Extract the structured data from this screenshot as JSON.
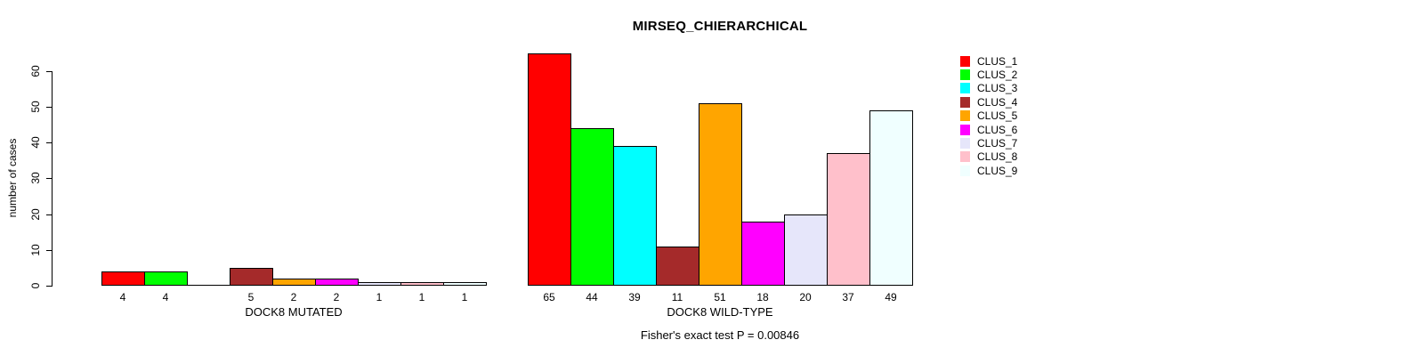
{
  "chart_data": {
    "type": "bar",
    "title": "MIRSEQ_CHIERARCHICAL",
    "ylabel": "number of cases",
    "xlabel": "",
    "note": "Fisher's exact test P = 0.00846",
    "ylim": [
      0,
      65
    ],
    "yticks": [
      0,
      10,
      20,
      30,
      40,
      50,
      60
    ],
    "grid": false,
    "legend_position": "top-right",
    "legend": [
      {
        "label": "CLUS_1",
        "color": "#FF0000"
      },
      {
        "label": "CLUS_2",
        "color": "#00FF00"
      },
      {
        "label": "CLUS_3",
        "color": "#00FFFF"
      },
      {
        "label": "CLUS_4",
        "color": "#A52A2A"
      },
      {
        "label": "CLUS_5",
        "color": "#FFA500"
      },
      {
        "label": "CLUS_6",
        "color": "#FF00FF"
      },
      {
        "label": "CLUS_7",
        "color": "#E6E6FA"
      },
      {
        "label": "CLUS_8",
        "color": "#FFC0CB"
      },
      {
        "label": "CLUS_9",
        "color": "#F0FFFF"
      }
    ],
    "series_colors": [
      "#FF0000",
      "#00FF00",
      "#00FFFF",
      "#A52A2A",
      "#FFA500",
      "#FF00FF",
      "#E6E6FA",
      "#FFC0CB",
      "#F0FFFF"
    ],
    "groups": [
      {
        "label": "DOCK8 MUTATED",
        "values": [
          4,
          4,
          0,
          5,
          2,
          2,
          1,
          1,
          1
        ]
      },
      {
        "label": "DOCK8 WILD-TYPE",
        "values": [
          65,
          44,
          39,
          11,
          51,
          18,
          20,
          37,
          49
        ]
      }
    ]
  }
}
